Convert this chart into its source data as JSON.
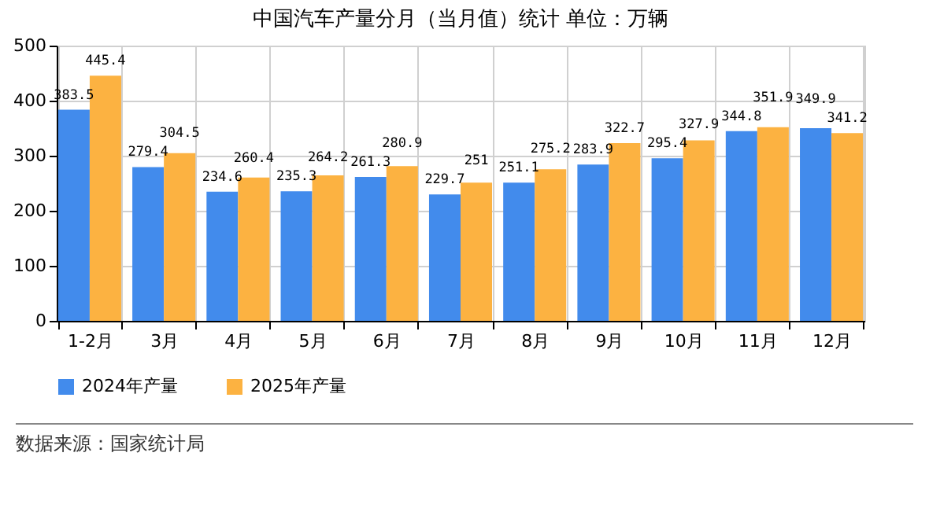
{
  "chart_data": {
    "type": "bar",
    "title": "中国汽车产量分月（当月值）统计 单位：万辆",
    "categories": [
      "1-2月",
      "3月",
      "4月",
      "5月",
      "6月",
      "7月",
      "8月",
      "9月",
      "10月",
      "11月",
      "12月"
    ],
    "series": [
      {
        "name": "2024年产量",
        "color": "#428bec",
        "values": [
          383.5,
          279.4,
          234.6,
          235.3,
          261.3,
          229.7,
          251.1,
          283.9,
          295.4,
          344.8,
          349.9
        ]
      },
      {
        "name": "2025年产量",
        "color": "#fcb241",
        "values": [
          445.4,
          304.5,
          260.4,
          264.2,
          280.9,
          251,
          275.2,
          322.7,
          327.9,
          351.9,
          341.2
        ]
      }
    ],
    "ylim": [
      0,
      500
    ],
    "yticks": [
      0,
      100,
      200,
      300,
      400,
      500
    ],
    "grid": true,
    "legend": "bottom",
    "data_labels": true,
    "annotations": [
      "数据来源：国家统计局"
    ]
  }
}
